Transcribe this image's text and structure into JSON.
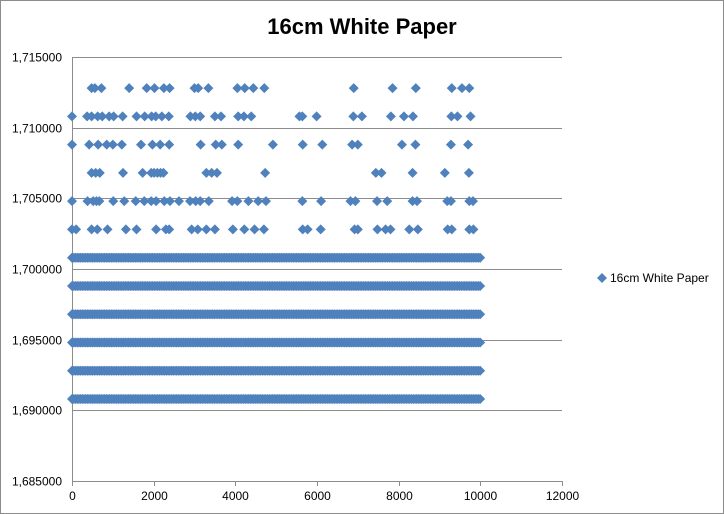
{
  "chart_data": {
    "type": "scatter",
    "title": "16cm White Paper",
    "xlabel": "",
    "ylabel": "",
    "xlim": [
      0,
      12000
    ],
    "ylim": [
      1685000,
      1715000
    ],
    "x_ticks": [
      0,
      2000,
      4000,
      6000,
      8000,
      10000,
      12000
    ],
    "x_tick_labels": [
      "0",
      "2000",
      "4000",
      "6000",
      "8000",
      "10000",
      "12000"
    ],
    "y_ticks": [
      1685000,
      1690000,
      1695000,
      1700000,
      1705000,
      1710000,
      1715000
    ],
    "y_tick_labels": [
      "1,685000",
      "1,690000",
      "1,695000",
      "1,700000",
      "1,705000",
      "1,710000",
      "1,715000"
    ],
    "grid": "horizontal major",
    "legend": {
      "position": "right",
      "entries": [
        "16cm White Paper"
      ]
    },
    "series": [
      {
        "name": "16cm White Paper",
        "color": "#4f81bd",
        "marker": "diamond",
        "dense_bands": [
          {
            "y": 1690800,
            "x_start": 0,
            "x_end": 10000
          },
          {
            "y": 1692800,
            "x_start": 0,
            "x_end": 10000
          },
          {
            "y": 1694800,
            "x_start": 0,
            "x_end": 10000
          },
          {
            "y": 1696800,
            "x_start": 0,
            "x_end": 10000
          },
          {
            "y": 1698800,
            "x_start": 0,
            "x_end": 10000
          },
          {
            "y": 1700800,
            "x_start": 0,
            "x_end": 10000
          }
        ],
        "sparse_rows": [
          {
            "y": 1702800,
            "x": [
              0,
              100,
              480,
              620,
              870,
              1320,
              1580,
              2060,
              2300,
              2380,
              2930,
              3080,
              3290,
              3500,
              3940,
              4220,
              4470,
              4700,
              5650,
              5770,
              6090,
              6920,
              7000,
              7480,
              7680,
              7800,
              8260,
              8470,
              9200,
              9300,
              9730,
              9830
            ]
          },
          {
            "y": 1704800,
            "x": [
              0,
              380,
              520,
              600,
              670,
              1010,
              1280,
              1560,
              1770,
              1940,
              2060,
              2260,
              2400,
              2620,
              2890,
              3030,
              3140,
              3350,
              3920,
              4050,
              4320,
              4560,
              4750,
              5640,
              6100,
              6820,
              6940,
              7470,
              7720,
              8340,
              8450,
              9190,
              9280,
              9730,
              9820
            ]
          },
          {
            "y": 1706800,
            "x": [
              480,
              580,
              680,
              1250,
              1730,
              1940,
              2010,
              2090,
              2170,
              2240,
              3290,
              3420,
              3550,
              4730,
              7440,
              7580,
              8340,
              9130,
              9720
            ]
          },
          {
            "y": 1708800,
            "x": [
              0,
              420,
              640,
              850,
              1000,
              1220,
              1690,
              1970,
              2160,
              2380,
              3150,
              3520,
              3670,
              4070,
              4920,
              5650,
              6130,
              6860,
              7000,
              8080,
              8410,
              9280,
              9700
            ]
          },
          {
            "y": 1710800,
            "x": [
              0,
              370,
              480,
              630,
              740,
              910,
              1020,
              1240,
              1580,
              1780,
              1950,
              2050,
              2200,
              2370,
              2900,
              3020,
              3140,
              3500,
              3650,
              4070,
              4210,
              4390,
              5570,
              5640,
              5990,
              6890,
              7100,
              7810,
              8130,
              8350,
              9290,
              9440,
              9760
            ]
          },
          {
            "y": 1712800,
            "x": [
              480,
              560,
              720,
              1400,
              1830,
              2020,
              2250,
              2390,
              3000,
              3090,
              3340,
              4050,
              4230,
              4440,
              4710,
              6900,
              7850,
              8420,
              9300,
              9550,
              9730
            ]
          }
        ],
        "band_point_spacing": 42
      }
    ]
  }
}
